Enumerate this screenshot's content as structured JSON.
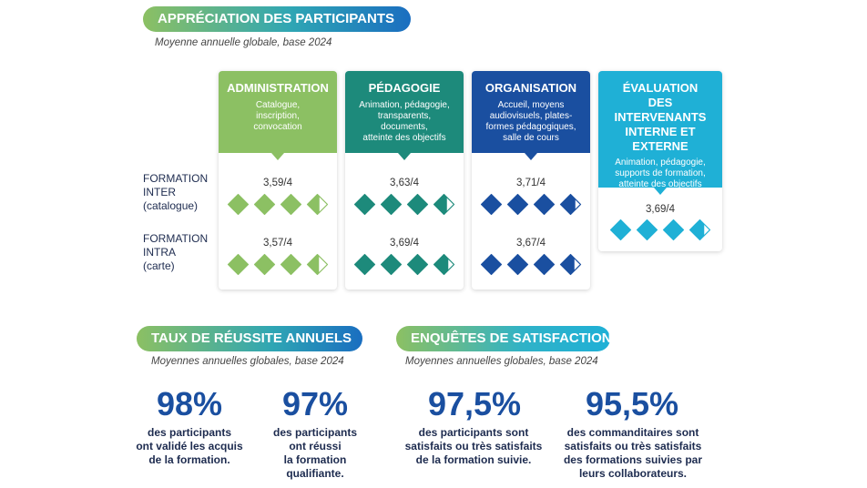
{
  "appreciation": {
    "title": "APPRÉCIATION DES PARTICIPANTS",
    "subtitle": "Moyenne annuelle globale, base 2024"
  },
  "row_labels": {
    "inter": "FORMATION\nINTER\n(catalogue)",
    "intra": "FORMATION\nINTRA\n(carte)"
  },
  "cards": [
    {
      "title": "ADMINISTRATION",
      "desc": "Catalogue,\ninscription,\nconvocation",
      "color": "#8cc063",
      "inter_score": "3,59/4",
      "inter_value": 3.59,
      "intra_score": "3,57/4",
      "intra_value": 3.57
    },
    {
      "title": "PÉDAGOGIE",
      "desc": "Animation, pédagogie,\ntransparents,\ndocuments,\natteinte des objectifs",
      "color": "#1d8a7b",
      "inter_score": "3,63/4",
      "inter_value": 3.63,
      "intra_score": "3,69/4",
      "intra_value": 3.69
    },
    {
      "title": "ORGANISATION",
      "desc": "Accueil, moyens\naudiovisuels, plates-\nformes pédagogiques,\nsalle de cours",
      "color": "#1a4fa0",
      "inter_score": "3,71/4",
      "inter_value": 3.71,
      "intra_score": "3,67/4",
      "intra_value": 3.67
    },
    {
      "title": "ÉVALUATION\nDES INTERVENANTS\nINTERNE ET\nEXTERNE",
      "desc": "Animation, pédagogie,\nsupports de formation,\natteinte des objectifs",
      "color": "#1fb0d6",
      "score": "3,69/4",
      "value": 3.69
    }
  ],
  "taux": {
    "title": "TAUX DE RÉUSSITE ANNUELS",
    "subtitle": "Moyennes annuelles globales, base 2024",
    "stats": [
      {
        "value": "98%",
        "text": "des participants\nont validé les acquis\nde la formation."
      },
      {
        "value": "97%",
        "text": "des participants\nont réussi\nla formation\nqualifiante."
      }
    ]
  },
  "enquetes": {
    "title": "ENQUÊTES DE SATISFACTION",
    "subtitle": "Moyennes annuelles globales, base 2024",
    "stats": [
      {
        "value": "97,5%",
        "text": "des participants sont\nsatisfaits ou très satisfaits\nde la formation suivie."
      },
      {
        "value": "95,5%",
        "text": "des commanditaires sont\nsatisfaits ou très satisfaits\ndes formations suivies par\nleurs collaborateurs."
      }
    ]
  },
  "colors": {
    "pill_green": "#8cc063",
    "pill_blue": "#1a4fa0",
    "pill_cyan": "#1fb0d6",
    "big_number": "#1a4fa0"
  }
}
